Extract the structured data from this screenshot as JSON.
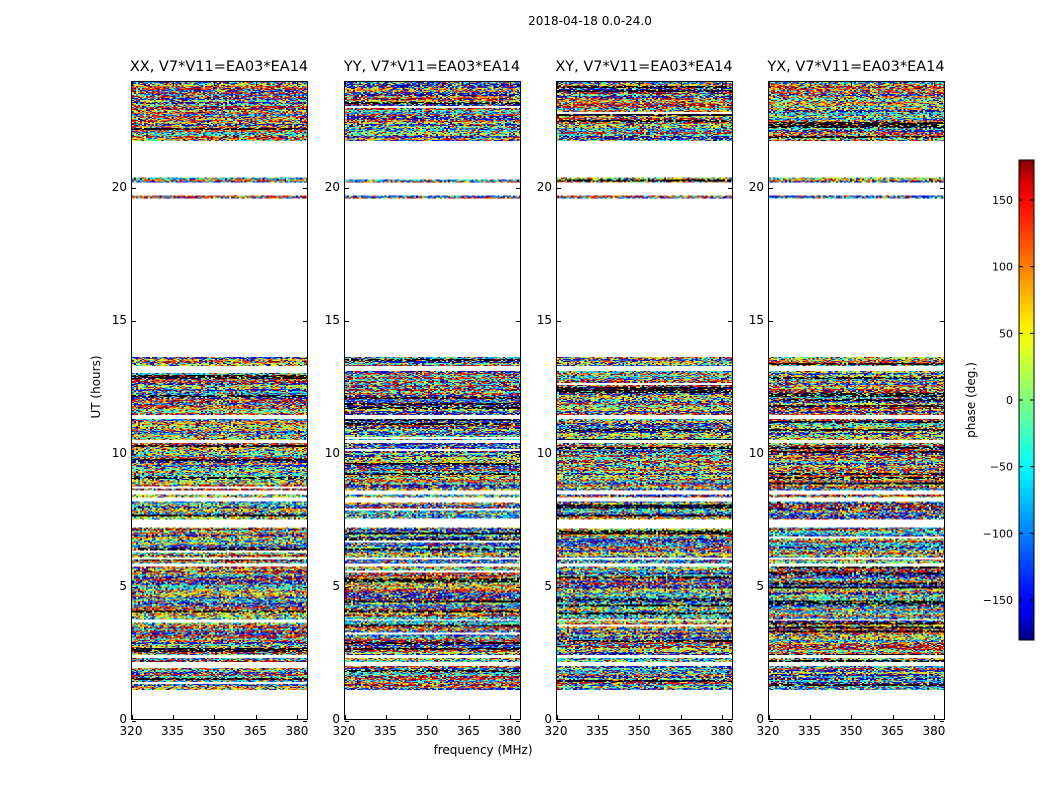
{
  "chart_data": {
    "type": "heatmap",
    "title": "2018-04-18 0.0-24.0",
    "xlabel": "frequency (MHz)",
    "ylabel": "UT (hours)",
    "xlim": [
      320,
      384
    ],
    "ylim": [
      0,
      24
    ],
    "x_ticks": [
      "320",
      "335",
      "350",
      "365",
      "380"
    ],
    "x_tick_values": [
      320,
      335,
      350,
      365,
      380
    ],
    "y_ticks": [
      "0",
      "5",
      "10",
      "15",
      "20"
    ],
    "y_tick_values": [
      0,
      5,
      10,
      15,
      20
    ],
    "panels": [
      {
        "title": "XX, V7*V11=EA03*EA14",
        "seed": 11
      },
      {
        "title": "YY, V7*V11=EA03*EA14",
        "seed": 23
      },
      {
        "title": "XY, V7*V11=EA03*EA14",
        "seed": 37
      },
      {
        "title": "YX, V7*V11=EA03*EA14",
        "seed": 51
      }
    ],
    "data_bands_ut_hours": [
      [
        1.1,
        2.0
      ],
      [
        2.15,
        2.3
      ],
      [
        2.4,
        3.7
      ],
      [
        3.75,
        5.75
      ],
      [
        5.85,
        6.0
      ],
      [
        6.1,
        7.2
      ],
      [
        7.5,
        8.2
      ],
      [
        8.35,
        8.45
      ],
      [
        8.6,
        10.4
      ],
      [
        10.5,
        11.3
      ],
      [
        11.45,
        13.1
      ],
      [
        13.3,
        13.65
      ],
      [
        19.6,
        19.7
      ],
      [
        20.2,
        20.4
      ],
      [
        21.8,
        24.0
      ]
    ],
    "colorbar": {
      "label": "phase (deg.)",
      "range": [
        -180,
        180
      ],
      "ticks": [
        "150",
        "100",
        "50",
        "0",
        "−50",
        "−100",
        "−150"
      ],
      "tick_values": [
        150,
        100,
        50,
        0,
        -50,
        -100,
        -150
      ],
      "colormap": "jet"
    }
  }
}
